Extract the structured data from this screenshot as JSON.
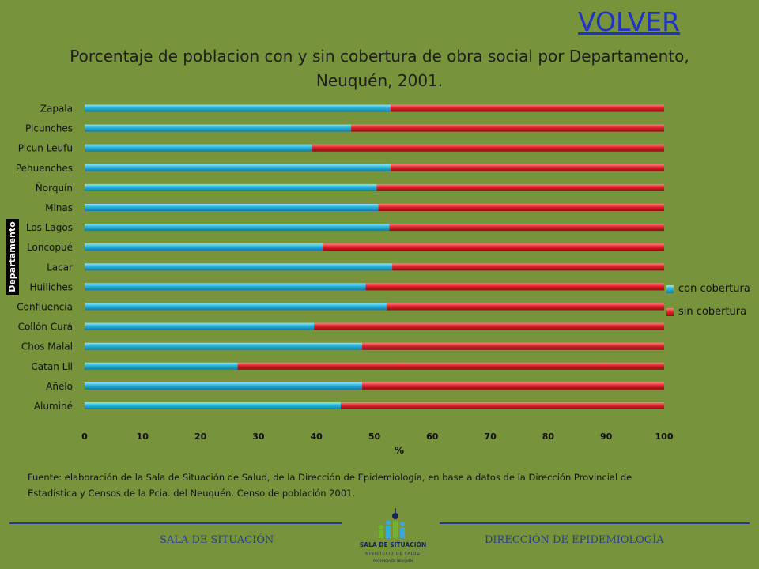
{
  "volver_label": "VOLVER",
  "chart_data": {
    "type": "bar",
    "orientation": "horizontal",
    "stacked": true,
    "title": "Porcentaje de poblacion con y sin cobertura de obra social por Departamento, Neuquén, 2001.",
    "xlabel": "%",
    "ylabel": "Departamento",
    "xlim": [
      0,
      100
    ],
    "xticks": [
      0,
      10,
      20,
      30,
      40,
      50,
      60,
      70,
      80,
      90,
      100
    ],
    "categories": [
      "Zapala",
      "Picunches",
      "Picun Leufu",
      "Pehuenches",
      "Ñorquín",
      "Minas",
      "Los Lagos",
      "Loncopué",
      "Lacar",
      "Huiliches",
      "Confluencia",
      "Collón Curá",
      "Chos Malal",
      "Catan Lil",
      "Añelo",
      "Aluminé"
    ],
    "series": [
      {
        "name": "con cobertura",
        "color": "#25b4dc",
        "values": [
          52.8,
          46.0,
          39.2,
          52.8,
          50.4,
          50.7,
          52.6,
          41.1,
          53.1,
          48.5,
          52.1,
          39.6,
          47.9,
          26.4,
          47.9,
          44.2
        ]
      },
      {
        "name": "sin cobertura",
        "color": "#e0202a",
        "values": [
          47.2,
          54.0,
          60.8,
          47.2,
          49.6,
          49.3,
          47.4,
          58.9,
          46.9,
          51.5,
          47.9,
          60.4,
          52.1,
          73.6,
          52.1,
          55.8
        ]
      }
    ],
    "legend_position": "right",
    "grid": false
  },
  "source_text": "Fuente: elaboración de la Sala de Situación de Salud, de la  Dirección de Epidemiología, en  base a datos de la Dirección Provincial de Estadística y Censos de la Pcia. del  Neuquén.  Censo de población 2001.",
  "footer": {
    "left": "SALA DE SITUACIÓN",
    "right": "DIRECCIÓN DE EPIDEMIOLOGÍA",
    "logo_name": "SALA DE SITUACIÓN",
    "logo_sub": "MINISTERIO DE SALUD",
    "logo_sub2": "PROVINCIA DE NEUQUÉN"
  }
}
